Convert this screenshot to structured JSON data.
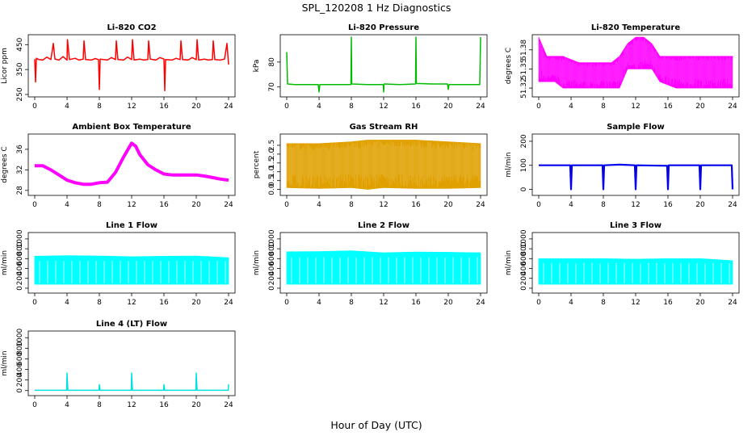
{
  "figure": {
    "title": "SPL_120208  1 Hz Diagnostics",
    "xlabel": "Hour of Day (UTC)"
  },
  "chart_data": [
    {
      "id": "co2",
      "type": "line",
      "title": "Li-820 CO2",
      "ylabel": "Licor ppm",
      "color": "#ff0000",
      "xlim": [
        0,
        24
      ],
      "ylim": [
        250,
        480
      ],
      "xticks": [
        "0",
        "4",
        "8",
        "12",
        "16",
        "20",
        "24"
      ],
      "yticks": [
        "250",
        "350",
        "450"
      ],
      "series": [
        {
          "name": "CO2",
          "values": [
            [
              0,
              392
            ],
            [
              0.1,
              300
            ],
            [
              0.2,
              395
            ],
            [
              0.5,
              390
            ],
            [
              1,
              388
            ],
            [
              1.5,
              400
            ],
            [
              2,
              390
            ],
            [
              2.3,
              455
            ],
            [
              2.5,
              392
            ],
            [
              3,
              388
            ],
            [
              3.5,
              402
            ],
            [
              4,
              388
            ],
            [
              4.05,
              470
            ],
            [
              4.3,
              390
            ],
            [
              5,
              395
            ],
            [
              5.5,
              388
            ],
            [
              6,
              392
            ],
            [
              6.1,
              465
            ],
            [
              6.3,
              390
            ],
            [
              7,
              388
            ],
            [
              7.5,
              394
            ],
            [
              7.9,
              390
            ],
            [
              8,
              270
            ],
            [
              8.1,
              392
            ],
            [
              9,
              388
            ],
            [
              9.5,
              398
            ],
            [
              10,
              390
            ],
            [
              10.1,
              465
            ],
            [
              10.3,
              390
            ],
            [
              11,
              388
            ],
            [
              11.5,
              400
            ],
            [
              12,
              390
            ],
            [
              12.1,
              470
            ],
            [
              12.3,
              388
            ],
            [
              13,
              392
            ],
            [
              13.5,
              388
            ],
            [
              14,
              390
            ],
            [
              14.1,
              465
            ],
            [
              14.3,
              392
            ],
            [
              15,
              388
            ],
            [
              15.5,
              398
            ],
            [
              16,
              392
            ],
            [
              16.1,
              265
            ],
            [
              16.2,
              390
            ],
            [
              17,
              388
            ],
            [
              17.5,
              395
            ],
            [
              18,
              390
            ],
            [
              18.1,
              465
            ],
            [
              18.3,
              390
            ],
            [
              19,
              388
            ],
            [
              19.5,
              398
            ],
            [
              20,
              390
            ],
            [
              20.1,
              470
            ],
            [
              20.3,
              388
            ],
            [
              21,
              392
            ],
            [
              21.5,
              388
            ],
            [
              22,
              390
            ],
            [
              22.1,
              465
            ],
            [
              22.3,
              390
            ],
            [
              23,
              388
            ],
            [
              23.5,
              392
            ],
            [
              23.8,
              455
            ],
            [
              24,
              370
            ]
          ]
        }
      ]
    },
    {
      "id": "pressure",
      "type": "line",
      "title": "Li-820 Pressure",
      "ylabel": "kPa",
      "color": "#00bb00",
      "xlim": [
        0,
        24
      ],
      "ylim": [
        67,
        90
      ],
      "xticks": [
        "0",
        "4",
        "8",
        "12",
        "16",
        "20",
        "24"
      ],
      "yticks": [
        "70",
        "80"
      ],
      "series": [
        {
          "name": "Pressure",
          "values": [
            [
              0,
              84
            ],
            [
              0.1,
              71.2
            ],
            [
              1,
              71
            ],
            [
              2,
              71
            ],
            [
              3.9,
              71
            ],
            [
              4,
              68
            ],
            [
              4.1,
              71
            ],
            [
              6,
              71
            ],
            [
              7.95,
              71
            ],
            [
              8,
              90
            ],
            [
              8.05,
              71.2
            ],
            [
              10,
              71
            ],
            [
              11.95,
              71
            ],
            [
              12,
              68
            ],
            [
              12.05,
              71.2
            ],
            [
              14,
              71
            ],
            [
              15.95,
              71.2
            ],
            [
              16,
              90
            ],
            [
              16.05,
              71.4
            ],
            [
              18,
              71.2
            ],
            [
              19.9,
              71.2
            ],
            [
              20,
              69
            ],
            [
              20.1,
              71
            ],
            [
              22,
              71
            ],
            [
              23.9,
              71
            ],
            [
              24,
              90
            ]
          ]
        }
      ]
    },
    {
      "id": "licor_temp",
      "type": "area",
      "title": "Li-820 Temperature",
      "ylabel": "degrees C",
      "color": "#ff00ff",
      "xlim": [
        0,
        24
      ],
      "ylim": [
        51.31,
        51.4
      ],
      "xticks": [
        "0",
        "4",
        "8",
        "12",
        "16",
        "20",
        "24"
      ],
      "yticks": [
        "51.32",
        "51.35",
        "51.38"
      ],
      "series": [
        {
          "name": "Temperature band",
          "values": [
            [
              0,
              51.33,
              51.4
            ],
            [
              1,
              51.33,
              51.37
            ],
            [
              2,
              51.33,
              51.37
            ],
            [
              3,
              51.32,
              51.37
            ],
            [
              5,
              51.32,
              51.36
            ],
            [
              7,
              51.32,
              51.36
            ],
            [
              9,
              51.32,
              51.36
            ],
            [
              10,
              51.32,
              51.37
            ],
            [
              11,
              51.35,
              51.39
            ],
            [
              12,
              51.35,
              51.4
            ],
            [
              13,
              51.35,
              51.4
            ],
            [
              14,
              51.35,
              51.39
            ],
            [
              15,
              51.33,
              51.37
            ],
            [
              17,
              51.32,
              51.37
            ],
            [
              19,
              51.32,
              51.37
            ],
            [
              21,
              51.32,
              51.37
            ],
            [
              23,
              51.32,
              51.37
            ],
            [
              24,
              51.32,
              51.37
            ]
          ]
        }
      ]
    },
    {
      "id": "box_temp",
      "type": "line",
      "title": "Ambient Box Temperature",
      "ylabel": "degrees C",
      "color": "#ff00ff",
      "xlim": [
        0,
        24
      ],
      "ylim": [
        27.5,
        38.5
      ],
      "xticks": [
        "0",
        "4",
        "8",
        "12",
        "16",
        "20",
        "24"
      ],
      "yticks": [
        "28",
        "32",
        "36"
      ],
      "series": [
        {
          "name": "Box Temperature",
          "values": [
            [
              0,
              32.8
            ],
            [
              1,
              32.8
            ],
            [
              2,
              32
            ],
            [
              3,
              31
            ],
            [
              4,
              30
            ],
            [
              5,
              29.5
            ],
            [
              6,
              29.2
            ],
            [
              7,
              29.2
            ],
            [
              8,
              29.5
            ],
            [
              9,
              29.6
            ],
            [
              10,
              31.5
            ],
            [
              11,
              34.5
            ],
            [
              12,
              37.2
            ],
            [
              12.5,
              36.6
            ],
            [
              13,
              35
            ],
            [
              14,
              33
            ],
            [
              15,
              32
            ],
            [
              16,
              31.2
            ],
            [
              17,
              31
            ],
            [
              18,
              31
            ],
            [
              19,
              31
            ],
            [
              20,
              31
            ],
            [
              21,
              30.8
            ],
            [
              22,
              30.5
            ],
            [
              23,
              30.2
            ],
            [
              24,
              30
            ]
          ]
        }
      ]
    },
    {
      "id": "rh",
      "type": "area",
      "title": "Gas Stream RH",
      "ylabel": "percent",
      "color": "#e0a000",
      "xlim": [
        0,
        24
      ],
      "ylim": [
        -0.2,
        3.0
      ],
      "xticks": [
        "0",
        "4",
        "8",
        "12",
        "16",
        "20",
        "24"
      ],
      "yticks": [
        "0.0",
        "0.5",
        "1.0",
        "1.5",
        "2.0",
        "2.5"
      ],
      "series": [
        {
          "name": "RH band",
          "values": [
            [
              0,
              0.1,
              2.6
            ],
            [
              4,
              0.05,
              2.6
            ],
            [
              8,
              0.1,
              2.7
            ],
            [
              10,
              0.0,
              2.8
            ],
            [
              12,
              0.1,
              2.8
            ],
            [
              16,
              0.05,
              2.8
            ],
            [
              20,
              0.05,
              2.7
            ],
            [
              24,
              0.1,
              2.6
            ]
          ]
        }
      ]
    },
    {
      "id": "sample_flow",
      "type": "line",
      "title": "Sample Flow",
      "ylabel": "ml/min",
      "color": "#0000ee",
      "xlim": [
        0,
        24
      ],
      "ylim": [
        -15,
        220
      ],
      "xticks": [
        "0",
        "4",
        "8",
        "12",
        "16",
        "20",
        "24"
      ],
      "yticks": [
        "0",
        "100",
        "200"
      ],
      "series": [
        {
          "name": "Sample Flow",
          "values": [
            [
              0,
              100
            ],
            [
              3.9,
              100
            ],
            [
              4,
              0
            ],
            [
              4.1,
              100
            ],
            [
              7.9,
              100
            ],
            [
              8,
              0
            ],
            [
              8.1,
              100
            ],
            [
              10,
              103
            ],
            [
              11.9,
              100
            ],
            [
              12,
              0
            ],
            [
              12.1,
              100
            ],
            [
              15.9,
              98
            ],
            [
              16,
              0
            ],
            [
              16.1,
              100
            ],
            [
              19.9,
              100
            ],
            [
              20,
              0
            ],
            [
              20.1,
              100
            ],
            [
              23.9,
              100
            ],
            [
              24,
              0
            ]
          ]
        }
      ]
    },
    {
      "id": "line1",
      "type": "area",
      "title": "Line 1 Flow",
      "ylabel": "ml/min",
      "color": "#00ffff",
      "xlim": [
        0,
        24
      ],
      "ylim": [
        -50,
        1080
      ],
      "xticks": [
        "0",
        "4",
        "8",
        "12",
        "16",
        "20",
        "24"
      ],
      "yticks": [
        "0",
        "200",
        "400",
        "600",
        "800",
        "1000"
      ],
      "series": [
        {
          "name": "Line 1 band",
          "values": [
            [
              0,
              80,
              650
            ],
            [
              4,
              80,
              660
            ],
            [
              8,
              80,
              655
            ],
            [
              12,
              80,
              640
            ],
            [
              16,
              80,
              650
            ],
            [
              20,
              80,
              655
            ],
            [
              24,
              80,
              620
            ]
          ]
        }
      ]
    },
    {
      "id": "line2",
      "type": "area",
      "title": "Line 2 Flow",
      "ylabel": "ml/min",
      "color": "#00ffff",
      "xlim": [
        0,
        24
      ],
      "ylim": [
        -50,
        1080
      ],
      "xticks": [
        "0",
        "4",
        "8",
        "12",
        "16",
        "20",
        "24"
      ],
      "yticks": [
        "0",
        "200",
        "400",
        "600",
        "800",
        "1000"
      ],
      "series": [
        {
          "name": "Line 2 band",
          "values": [
            [
              0,
              80,
              740
            ],
            [
              4,
              80,
              745
            ],
            [
              8,
              80,
              760
            ],
            [
              12,
              80,
              720
            ],
            [
              16,
              80,
              735
            ],
            [
              20,
              80,
              730
            ],
            [
              24,
              80,
              720
            ]
          ]
        }
      ]
    },
    {
      "id": "line3",
      "type": "area",
      "title": "Line 3 Flow",
      "ylabel": "ml/min",
      "color": "#00ffff",
      "xlim": [
        0,
        24
      ],
      "ylim": [
        -50,
        1080
      ],
      "xticks": [
        "0",
        "4",
        "8",
        "12",
        "16",
        "20",
        "24"
      ],
      "yticks": [
        "0",
        "200",
        "400",
        "600",
        "800",
        "1000"
      ],
      "series": [
        {
          "name": "Line 3 band",
          "values": [
            [
              0,
              80,
              600
            ],
            [
              4,
              80,
              600
            ],
            [
              8,
              80,
              600
            ],
            [
              12,
              80,
              590
            ],
            [
              16,
              80,
              600
            ],
            [
              20,
              80,
              600
            ],
            [
              24,
              80,
              560
            ]
          ]
        }
      ]
    },
    {
      "id": "line4",
      "type": "line",
      "title": "Line 4 (LT) Flow",
      "ylabel": "ml/min",
      "color": "#00e0e0",
      "xlim": [
        0,
        24
      ],
      "ylim": [
        -50,
        1080
      ],
      "xticks": [
        "0",
        "4",
        "8",
        "12",
        "16",
        "20",
        "24"
      ],
      "yticks": [
        "0",
        "200",
        "400",
        "600",
        "800",
        "1000"
      ],
      "series": [
        {
          "name": "Line 4 Flow",
          "values": [
            [
              0,
              5
            ],
            [
              3.95,
              5
            ],
            [
              4,
              330
            ],
            [
              4.1,
              5
            ],
            [
              7.95,
              5
            ],
            [
              8,
              110
            ],
            [
              8.1,
              5
            ],
            [
              11.95,
              5
            ],
            [
              12,
              330
            ],
            [
              12.1,
              5
            ],
            [
              15.95,
              5
            ],
            [
              16,
              110
            ],
            [
              16.1,
              5
            ],
            [
              19.95,
              5
            ],
            [
              20,
              330
            ],
            [
              20.1,
              5
            ],
            [
              23.95,
              5
            ],
            [
              24,
              120
            ]
          ]
        }
      ]
    }
  ]
}
